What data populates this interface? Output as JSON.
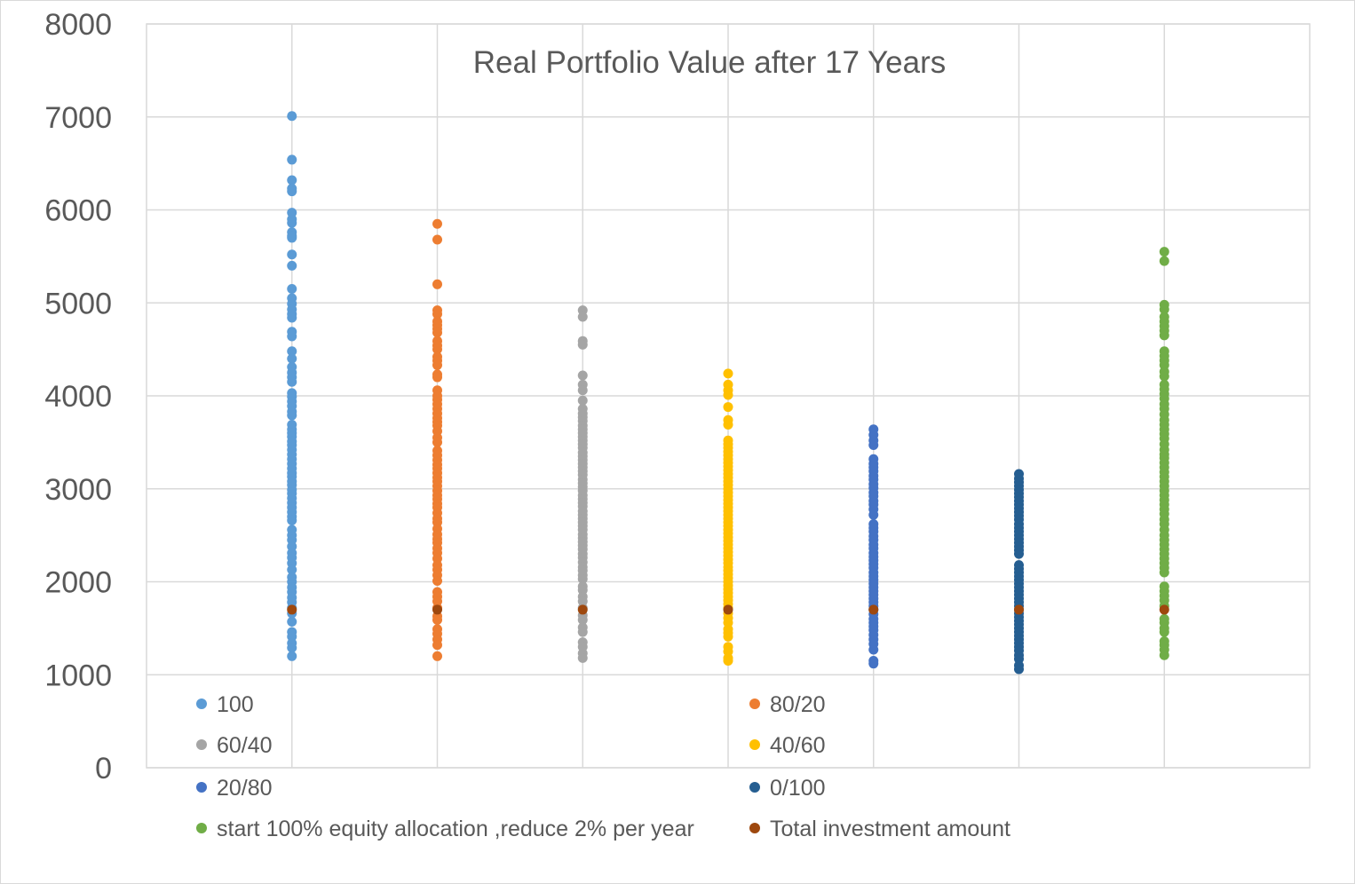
{
  "chart_data": {
    "type": "scatter",
    "title": "Real Portfolio Value after 17 Years",
    "xlabel": "",
    "ylabel": "",
    "xlim": [
      0,
      8
    ],
    "ylim": [
      0,
      8000
    ],
    "y_ticks": [
      0,
      1000,
      2000,
      3000,
      4000,
      5000,
      6000,
      7000,
      8000
    ],
    "grid": true,
    "legend_position": "bottom",
    "series": [
      {
        "name": "100",
        "color": "#5b9bd5",
        "x": 1,
        "values": [
          7010,
          6540,
          6320,
          6230,
          6200,
          5970,
          5900,
          5860,
          5760,
          5720,
          5700,
          5520,
          5400,
          5150,
          5050,
          4990,
          4930,
          4880,
          4840,
          4690,
          4640,
          4480,
          4400,
          4310,
          4250,
          4200,
          4150,
          4030,
          3990,
          3940,
          3890,
          3830,
          3790,
          3690,
          3640,
          3600,
          3560,
          3510,
          3470,
          3420,
          3370,
          3320,
          3270,
          3220,
          3170,
          3130,
          3080,
          3040,
          2990,
          2950,
          2900,
          2850,
          2800,
          2750,
          2700,
          2660,
          2560,
          2500,
          2450,
          2380,
          2310,
          2260,
          2200,
          2130,
          2050,
          2000,
          1940,
          1890,
          1830,
          1780,
          1720,
          1660,
          1570,
          1460,
          1410,
          1340,
          1290,
          1200
        ]
      },
      {
        "name": "80/20",
        "color": "#ed7d31",
        "x": 2,
        "values": [
          5850,
          5680,
          5200,
          4920,
          4880,
          4800,
          4760,
          4720,
          4680,
          4590,
          4540,
          4500,
          4420,
          4380,
          4330,
          4230,
          4200,
          4060,
          4000,
          3960,
          3910,
          3860,
          3810,
          3760,
          3720,
          3680,
          3620,
          3550,
          3500,
          3410,
          3360,
          3310,
          3260,
          3220,
          3170,
          3120,
          3080,
          3030,
          2980,
          2930,
          2890,
          2840,
          2800,
          2740,
          2680,
          2640,
          2570,
          2510,
          2460,
          2420,
          2360,
          2310,
          2250,
          2180,
          2130,
          2070,
          2010,
          1890,
          1840,
          1790,
          1720,
          1630,
          1590,
          1490,
          1440,
          1380,
          1320,
          1200
        ]
      },
      {
        "name": "60/40",
        "color": "#a5a5a5",
        "x": 3,
        "values": [
          4920,
          4850,
          4590,
          4550,
          4220,
          4120,
          4060,
          3950,
          3860,
          3810,
          3770,
          3730,
          3680,
          3640,
          3600,
          3560,
          3520,
          3480,
          3440,
          3390,
          3350,
          3310,
          3270,
          3230,
          3190,
          3150,
          3100,
          3060,
          3020,
          2980,
          2930,
          2890,
          2850,
          2810,
          2760,
          2720,
          2680,
          2640,
          2600,
          2560,
          2510,
          2470,
          2430,
          2390,
          2350,
          2300,
          2260,
          2210,
          2160,
          2120,
          2070,
          2030,
          1950,
          1910,
          1840,
          1790,
          1720,
          1640,
          1590,
          1510,
          1460,
          1350,
          1300,
          1230,
          1180
        ]
      },
      {
        "name": "40/60",
        "color": "#ffc000",
        "x": 4,
        "values": [
          4240,
          4120,
          4060,
          4010,
          3880,
          3740,
          3690,
          3520,
          3480,
          3440,
          3400,
          3360,
          3320,
          3280,
          3240,
          3200,
          3160,
          3120,
          3080,
          3040,
          3000,
          2960,
          2920,
          2880,
          2840,
          2800,
          2760,
          2720,
          2680,
          2640,
          2600,
          2560,
          2520,
          2480,
          2440,
          2400,
          2360,
          2320,
          2280,
          2240,
          2200,
          2160,
          2120,
          2080,
          2040,
          2000,
          1960,
          1920,
          1880,
          1840,
          1800,
          1760,
          1720,
          1660,
          1610,
          1560,
          1490,
          1450,
          1410,
          1300,
          1250,
          1180,
          1150
        ]
      },
      {
        "name": "20/80",
        "color": "#4472c4",
        "x": 5,
        "values": [
          3640,
          3580,
          3520,
          3470,
          3320,
          3270,
          3230,
          3190,
          3140,
          3100,
          3050,
          3010,
          2960,
          2920,
          2870,
          2830,
          2780,
          2720,
          2620,
          2580,
          2540,
          2490,
          2450,
          2400,
          2360,
          2310,
          2270,
          2230,
          2190,
          2150,
          2100,
          2060,
          2020,
          1980,
          1940,
          1900,
          1860,
          1820,
          1780,
          1740,
          1700,
          1650,
          1600,
          1560,
          1520,
          1480,
          1430,
          1380,
          1330,
          1270,
          1150,
          1120
        ]
      },
      {
        "name": "0/100",
        "color": "#255e91",
        "x": 6,
        "values": [
          3160,
          3110,
          3070,
          3030,
          2990,
          2950,
          2910,
          2870,
          2830,
          2790,
          2750,
          2710,
          2670,
          2620,
          2580,
          2540,
          2500,
          2460,
          2420,
          2380,
          2340,
          2300,
          2180,
          2140,
          2100,
          2060,
          2020,
          1980,
          1940,
          1900,
          1860,
          1820,
          1780,
          1740,
          1700,
          1660,
          1620,
          1580,
          1540,
          1500,
          1460,
          1420,
          1380,
          1340,
          1300,
          1260,
          1210,
          1170,
          1100,
          1060
        ]
      },
      {
        "name": "start 100% equity allocation ,reduce 2% per year",
        "color": "#70ad47",
        "x": 7,
        "values": [
          5550,
          5450,
          4980,
          4930,
          4850,
          4800,
          4750,
          4700,
          4650,
          4480,
          4430,
          4380,
          4330,
          4260,
          4210,
          4120,
          4070,
          4020,
          3970,
          3910,
          3860,
          3800,
          3740,
          3690,
          3640,
          3590,
          3540,
          3480,
          3420,
          3370,
          3330,
          3280,
          3230,
          3180,
          3130,
          3080,
          3030,
          2980,
          2930,
          2880,
          2830,
          2780,
          2730,
          2670,
          2620,
          2560,
          2500,
          2450,
          2400,
          2350,
          2300,
          2250,
          2200,
          2150,
          2100,
          1950,
          1900,
          1850,
          1800,
          1740,
          1600,
          1560,
          1500,
          1460,
          1360,
          1320,
          1270,
          1210
        ]
      },
      {
        "name": "Total investment amount",
        "color": "#9e480e",
        "x": [
          1,
          2,
          3,
          4,
          5,
          6,
          7
        ],
        "values": [
          1700,
          1700,
          1700,
          1700,
          1700,
          1700,
          1700
        ]
      }
    ]
  }
}
